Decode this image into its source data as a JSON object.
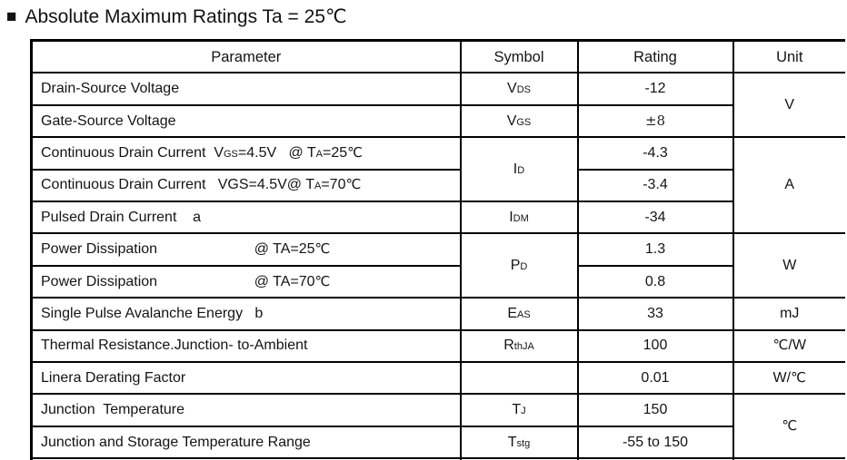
{
  "header": {
    "marker": "■",
    "title": "Absolute Maximum Ratings Ta = 25℃"
  },
  "colors": {
    "background": "#ffffff",
    "border": "#000000",
    "text": "#141414"
  },
  "table": {
    "headers": [
      "Parameter",
      "Symbol",
      "Rating",
      "Unit"
    ],
    "rows": [
      {
        "cells": [
          {
            "col": "parameter",
            "segs": [
              "Drain-Source Voltage"
            ]
          },
          {
            "col": "symbol",
            "segs": [
              "V",
              {
                "t": "DS",
                "s": "sub"
              }
            ]
          },
          {
            "col": "rating",
            "segs": [
              "-12"
            ]
          },
          {
            "col": "unit",
            "rowspan": 2,
            "segs": [
              "V"
            ]
          }
        ]
      },
      {
        "cells": [
          {
            "col": "parameter",
            "segs": [
              "Gate-Source Voltage"
            ]
          },
          {
            "col": "symbol",
            "segs": [
              "V",
              {
                "t": "GS",
                "s": "sub"
              }
            ]
          },
          {
            "col": "rating",
            "segs": [
              {
                "t": "±8",
                "s": "pm"
              }
            ]
          }
        ]
      },
      {
        "cells": [
          {
            "col": "parameter",
            "segs": [
              "Continuous Drain Current  V",
              {
                "t": "GS",
                "s": "sub"
              },
              "=4.5V   @ T",
              {
                "t": "A",
                "s": "sub"
              },
              "=25",
              {
                "t": "℃",
                "s": "cel"
              }
            ]
          },
          {
            "col": "symbol",
            "rowspan": 2,
            "segs": [
              "I",
              {
                "t": "D",
                "s": "sub"
              }
            ]
          },
          {
            "col": "rating",
            "segs": [
              "-4.3"
            ]
          },
          {
            "col": "unit",
            "rowspan": 3,
            "segs": [
              "A"
            ]
          }
        ]
      },
      {
        "cells": [
          {
            "col": "parameter",
            "segs": [
              "Continuous Drain Current   VGS=4.5V@ T",
              {
                "t": "A",
                "s": "sub"
              },
              "=70",
              {
                "t": "℃",
                "s": "cel"
              }
            ]
          },
          {
            "col": "rating",
            "segs": [
              "-3.4"
            ]
          }
        ]
      },
      {
        "cells": [
          {
            "col": "parameter",
            "segs": [
              "Pulsed Drain Current    a"
            ]
          },
          {
            "col": "symbol",
            "segs": [
              "I",
              {
                "t": "DM",
                "s": "sub"
              }
            ]
          },
          {
            "col": "rating",
            "segs": [
              "-34"
            ]
          }
        ]
      },
      {
        "cells": [
          {
            "col": "parameter",
            "segs": [
              "Power Dissipation                        @ TA=25",
              {
                "t": "℃",
                "s": "cel"
              }
            ]
          },
          {
            "col": "symbol",
            "rowspan": 2,
            "segs": [
              "P",
              {
                "t": "D",
                "s": "sub"
              }
            ]
          },
          {
            "col": "rating",
            "segs": [
              "1.3"
            ]
          },
          {
            "col": "unit",
            "rowspan": 2,
            "segs": [
              "W"
            ]
          }
        ]
      },
      {
        "cells": [
          {
            "col": "parameter",
            "segs": [
              "Power Dissipation                        @ TA=70",
              {
                "t": "℃",
                "s": "cel"
              }
            ]
          },
          {
            "col": "rating",
            "segs": [
              "0.8"
            ]
          }
        ]
      },
      {
        "cells": [
          {
            "col": "parameter",
            "segs": [
              "Single Pulse Avalanche Energy   b"
            ]
          },
          {
            "col": "symbol",
            "segs": [
              "E",
              {
                "t": "AS",
                "s": "sub"
              }
            ]
          },
          {
            "col": "rating",
            "segs": [
              "33"
            ]
          },
          {
            "col": "unit",
            "segs": [
              "mJ"
            ]
          }
        ]
      },
      {
        "cells": [
          {
            "col": "parameter",
            "segs": [
              "Thermal Resistance.Junction- to-Ambient"
            ]
          },
          {
            "col": "symbol",
            "segs": [
              "R",
              {
                "t": "thJA",
                "s": "sub"
              }
            ]
          },
          {
            "col": "rating",
            "segs": [
              "100"
            ]
          },
          {
            "col": "unit",
            "segs": [
              {
                "t": "℃",
                "s": "cel"
              },
              "/W"
            ]
          }
        ]
      },
      {
        "cells": [
          {
            "col": "parameter",
            "segs": [
              "Linera Derating Factor"
            ]
          },
          {
            "col": "symbol",
            "segs": []
          },
          {
            "col": "rating",
            "segs": [
              "0.01"
            ]
          },
          {
            "col": "unit",
            "segs": [
              "W/",
              {
                "t": "℃",
                "s": "cel"
              }
            ]
          }
        ]
      },
      {
        "cells": [
          {
            "col": "parameter",
            "segs": [
              "Junction  Temperature"
            ]
          },
          {
            "col": "symbol",
            "segs": [
              "T",
              {
                "t": "J",
                "s": "sub"
              }
            ]
          },
          {
            "col": "rating",
            "segs": [
              "150"
            ]
          },
          {
            "col": "unit",
            "rowspan": 2,
            "segs": [
              {
                "t": "℃",
                "s": "cel"
              }
            ]
          }
        ]
      },
      {
        "cells": [
          {
            "col": "parameter",
            "segs": [
              "Junction and Storage Temperature Range"
            ]
          },
          {
            "col": "symbol",
            "segs": [
              "T",
              {
                "t": "stg",
                "s": "sub"
              }
            ]
          },
          {
            "col": "rating",
            "segs": [
              "-55 to 150"
            ]
          }
        ]
      }
    ]
  }
}
